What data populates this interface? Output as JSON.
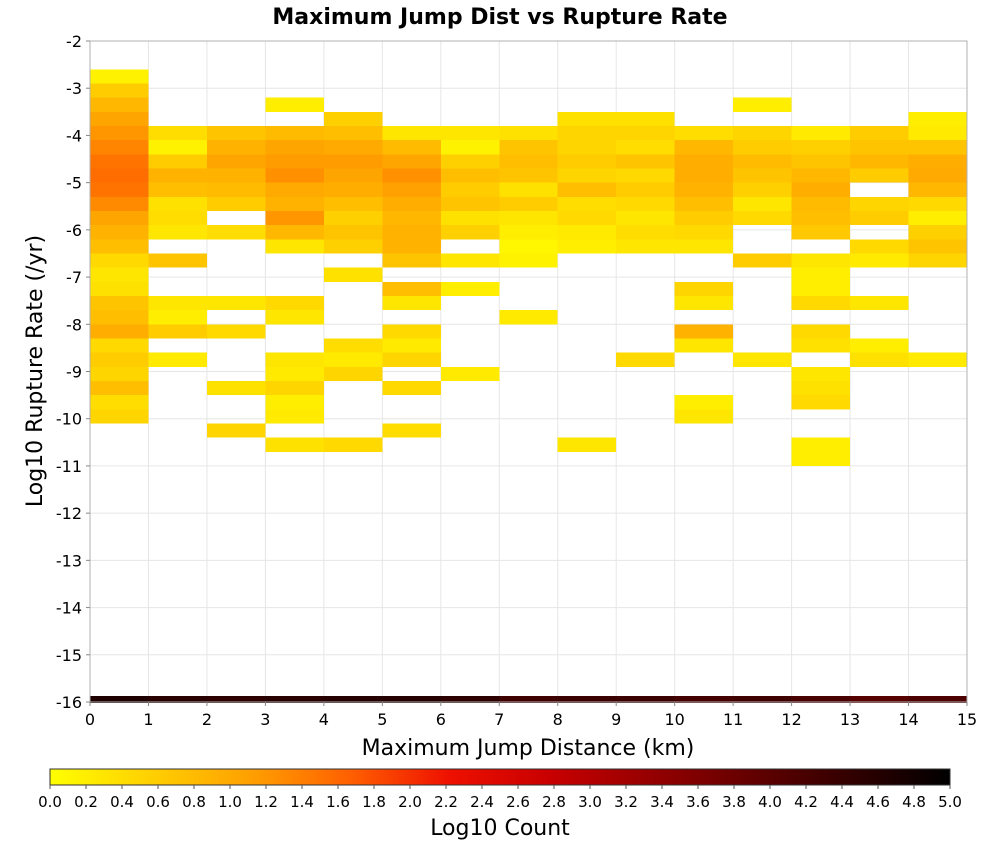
{
  "chart_data": {
    "type": "heatmap",
    "title": "Maximum Jump Dist vs Rupture Rate",
    "xlabel": "Maximum Jump Distance (km)",
    "ylabel": "Log10 Rupture Rate (/yr)",
    "xlim": [
      0,
      15
    ],
    "ylim": [
      -16,
      -2
    ],
    "x_bin_width": 1,
    "y_bin_width": 0.3,
    "x_ticks": [
      "0",
      "1",
      "2",
      "3",
      "4",
      "5",
      "6",
      "7",
      "8",
      "9",
      "10",
      "11",
      "12",
      "13",
      "14",
      "15"
    ],
    "y_ticks": [
      "-2",
      "-3",
      "-4",
      "-5",
      "-6",
      "-7",
      "-8",
      "-9",
      "-10",
      "-11",
      "-12",
      "-13",
      "-14",
      "-15",
      "-16"
    ],
    "grid": true,
    "colorbar": {
      "label": "Log10 Count",
      "range": [
        0.0,
        5.0
      ],
      "ticks": [
        "0.0",
        "0.2",
        "0.4",
        "0.6",
        "0.8",
        "1.0",
        "1.2",
        "1.4",
        "1.6",
        "1.8",
        "2.0",
        "2.2",
        "2.4",
        "2.6",
        "2.8",
        "3.0",
        "3.2",
        "3.4",
        "3.6",
        "3.8",
        "4.0",
        "4.2",
        "4.4",
        "4.6",
        "4.8",
        "5.0"
      ],
      "colors": [
        "#ffff00",
        "#ffd000",
        "#ffa000",
        "#ff6000",
        "#ee1000",
        "#c80000",
        "#960000",
        "#640000",
        "#320000",
        "#000000"
      ]
    },
    "bottom_row": {
      "y_center": -15.95,
      "values": [
        4.65,
        4.55,
        4.5,
        4.55,
        4.6,
        4.6,
        4.5,
        4.3,
        4.35,
        4.35,
        4.25,
        4.3,
        4.2,
        4.05,
        4.15
      ]
    },
    "cells": [
      [
        0,
        -2.75,
        0.15
      ],
      [
        0,
        -3.05,
        0.6
      ],
      [
        0,
        -3.35,
        0.85
      ],
      [
        0,
        -3.65,
        1.05
      ],
      [
        0,
        -3.95,
        1.2
      ],
      [
        0,
        -4.25,
        1.35
      ],
      [
        0,
        -4.55,
        1.5
      ],
      [
        0,
        -4.85,
        1.55
      ],
      [
        0,
        -5.15,
        1.5
      ],
      [
        0,
        -5.45,
        1.3
      ],
      [
        0,
        -5.75,
        1.05
      ],
      [
        0,
        -6.05,
        0.9
      ],
      [
        0,
        -6.35,
        0.75
      ],
      [
        0,
        -6.65,
        0.45
      ],
      [
        0,
        -6.95,
        0.3
      ],
      [
        0,
        -7.25,
        0.35
      ],
      [
        0,
        -7.55,
        0.7
      ],
      [
        0,
        -7.85,
        0.75
      ],
      [
        0,
        -8.15,
        0.95
      ],
      [
        0,
        -8.45,
        0.45
      ],
      [
        0,
        -8.75,
        0.6
      ],
      [
        0,
        -9.05,
        0.5
      ],
      [
        0,
        -9.35,
        0.75
      ],
      [
        0,
        -9.65,
        0.4
      ],
      [
        0,
        -9.95,
        0.5
      ],
      [
        1,
        -3.95,
        0.4
      ],
      [
        1,
        -4.25,
        0.15
      ],
      [
        1,
        -4.55,
        0.6
      ],
      [
        1,
        -4.85,
        0.9
      ],
      [
        1,
        -5.15,
        0.75
      ],
      [
        1,
        -5.45,
        0.35
      ],
      [
        1,
        -5.75,
        0.4
      ],
      [
        1,
        -6.05,
        0.3
      ],
      [
        1,
        -6.65,
        0.7
      ],
      [
        1,
        -7.55,
        0.3
      ],
      [
        1,
        -7.85,
        0.2
      ],
      [
        1,
        -8.15,
        0.6
      ],
      [
        1,
        -8.75,
        0.25
      ],
      [
        2,
        -3.95,
        0.7
      ],
      [
        2,
        -4.25,
        0.9
      ],
      [
        2,
        -4.55,
        1.05
      ],
      [
        2,
        -4.85,
        0.9
      ],
      [
        2,
        -5.15,
        0.8
      ],
      [
        2,
        -5.45,
        0.6
      ],
      [
        2,
        -6.05,
        0.4
      ],
      [
        2,
        -7.55,
        0.3
      ],
      [
        2,
        -8.15,
        0.45
      ],
      [
        2,
        -9.35,
        0.35
      ],
      [
        2,
        -10.25,
        0.5
      ],
      [
        3,
        -3.35,
        0.2
      ],
      [
        3,
        -3.95,
        0.8
      ],
      [
        3,
        -4.25,
        1.05
      ],
      [
        3,
        -4.55,
        1.15
      ],
      [
        3,
        -4.85,
        1.25
      ],
      [
        3,
        -5.15,
        1.0
      ],
      [
        3,
        -5.45,
        0.9
      ],
      [
        3,
        -5.75,
        1.2
      ],
      [
        3,
        -6.05,
        0.85
      ],
      [
        3,
        -6.35,
        0.3
      ],
      [
        3,
        -7.55,
        0.45
      ],
      [
        3,
        -7.85,
        0.3
      ],
      [
        3,
        -8.75,
        0.3
      ],
      [
        3,
        -9.05,
        0.25
      ],
      [
        3,
        -9.35,
        0.5
      ],
      [
        3,
        -9.65,
        0.2
      ],
      [
        3,
        -9.95,
        0.25
      ],
      [
        3,
        -10.55,
        0.35
      ],
      [
        4,
        -3.65,
        0.55
      ],
      [
        4,
        -3.95,
        0.75
      ],
      [
        4,
        -4.25,
        1.0
      ],
      [
        4,
        -4.55,
        1.15
      ],
      [
        4,
        -4.85,
        1.05
      ],
      [
        4,
        -5.15,
        0.95
      ],
      [
        4,
        -5.45,
        0.75
      ],
      [
        4,
        -5.75,
        0.55
      ],
      [
        4,
        -6.05,
        0.7
      ],
      [
        4,
        -6.35,
        0.55
      ],
      [
        4,
        -6.95,
        0.35
      ],
      [
        4,
        -8.45,
        0.4
      ],
      [
        4,
        -8.75,
        0.25
      ],
      [
        4,
        -9.05,
        0.5
      ],
      [
        4,
        -10.55,
        0.45
      ],
      [
        5,
        -3.95,
        0.3
      ],
      [
        5,
        -4.25,
        0.8
      ],
      [
        5,
        -4.55,
        1.05
      ],
      [
        5,
        -4.85,
        1.25
      ],
      [
        5,
        -5.15,
        1.1
      ],
      [
        5,
        -5.45,
        0.95
      ],
      [
        5,
        -5.75,
        0.85
      ],
      [
        5,
        -6.05,
        0.9
      ],
      [
        5,
        -6.35,
        0.9
      ],
      [
        5,
        -6.65,
        0.7
      ],
      [
        5,
        -7.25,
        0.75
      ],
      [
        5,
        -7.55,
        0.3
      ],
      [
        5,
        -8.15,
        0.45
      ],
      [
        5,
        -8.45,
        0.25
      ],
      [
        5,
        -8.75,
        0.5
      ],
      [
        5,
        -9.35,
        0.45
      ],
      [
        5,
        -10.25,
        0.4
      ],
      [
        6,
        -3.95,
        0.3
      ],
      [
        6,
        -4.25,
        0.15
      ],
      [
        6,
        -4.55,
        0.55
      ],
      [
        6,
        -4.85,
        0.75
      ],
      [
        6,
        -5.15,
        0.6
      ],
      [
        6,
        -5.45,
        0.7
      ],
      [
        6,
        -5.75,
        0.35
      ],
      [
        6,
        -6.05,
        0.55
      ],
      [
        6,
        -6.65,
        0.3
      ],
      [
        6,
        -7.25,
        0.2
      ],
      [
        6,
        -9.05,
        0.25
      ],
      [
        7,
        -3.95,
        0.35
      ],
      [
        7,
        -4.25,
        0.7
      ],
      [
        7,
        -4.55,
        0.75
      ],
      [
        7,
        -4.85,
        0.7
      ],
      [
        7,
        -5.15,
        0.35
      ],
      [
        7,
        -5.45,
        0.6
      ],
      [
        7,
        -5.75,
        0.3
      ],
      [
        7,
        -6.05,
        0.2
      ],
      [
        7,
        -6.35,
        0.1
      ],
      [
        7,
        -6.65,
        0.15
      ],
      [
        7,
        -7.85,
        0.25
      ],
      [
        8,
        -3.65,
        0.35
      ],
      [
        8,
        -3.95,
        0.5
      ],
      [
        8,
        -4.25,
        0.5
      ],
      [
        8,
        -4.55,
        0.6
      ],
      [
        8,
        -4.85,
        0.5
      ],
      [
        8,
        -5.15,
        0.75
      ],
      [
        8,
        -5.45,
        0.4
      ],
      [
        8,
        -5.75,
        0.45
      ],
      [
        8,
        -6.05,
        0.25
      ],
      [
        8,
        -6.35,
        0.2
      ],
      [
        8,
        -10.55,
        0.3
      ],
      [
        9,
        -3.65,
        0.35
      ],
      [
        9,
        -3.95,
        0.5
      ],
      [
        9,
        -4.25,
        0.4
      ],
      [
        9,
        -4.55,
        0.7
      ],
      [
        9,
        -4.85,
        0.45
      ],
      [
        9,
        -5.15,
        0.6
      ],
      [
        9,
        -5.45,
        0.45
      ],
      [
        9,
        -5.75,
        0.3
      ],
      [
        9,
        -6.05,
        0.4
      ],
      [
        9,
        -6.35,
        0.3
      ],
      [
        9,
        -8.75,
        0.45
      ],
      [
        10,
        -3.95,
        0.4
      ],
      [
        10,
        -4.25,
        0.85
      ],
      [
        10,
        -4.55,
        0.95
      ],
      [
        10,
        -4.85,
        0.95
      ],
      [
        10,
        -5.15,
        0.9
      ],
      [
        10,
        -5.45,
        0.75
      ],
      [
        10,
        -5.75,
        0.6
      ],
      [
        10,
        -6.05,
        0.45
      ],
      [
        10,
        -6.35,
        0.3
      ],
      [
        10,
        -7.25,
        0.5
      ],
      [
        10,
        -7.55,
        0.3
      ],
      [
        10,
        -8.15,
        0.9
      ],
      [
        10,
        -8.45,
        0.3
      ],
      [
        10,
        -9.65,
        0.2
      ],
      [
        10,
        -9.95,
        0.3
      ],
      [
        11,
        -3.35,
        0.2
      ],
      [
        11,
        -3.95,
        0.5
      ],
      [
        11,
        -4.25,
        0.6
      ],
      [
        11,
        -4.55,
        0.8
      ],
      [
        11,
        -4.85,
        0.7
      ],
      [
        11,
        -5.15,
        0.55
      ],
      [
        11,
        -5.45,
        0.3
      ],
      [
        11,
        -5.75,
        0.45
      ],
      [
        11,
        -6.65,
        0.6
      ],
      [
        11,
        -8.75,
        0.3
      ],
      [
        12,
        -3.95,
        0.25
      ],
      [
        12,
        -4.25,
        0.55
      ],
      [
        12,
        -4.55,
        0.7
      ],
      [
        12,
        -4.85,
        0.85
      ],
      [
        12,
        -5.15,
        0.95
      ],
      [
        12,
        -5.45,
        0.8
      ],
      [
        12,
        -5.75,
        0.75
      ],
      [
        12,
        -6.05,
        0.65
      ],
      [
        12,
        -6.65,
        0.3
      ],
      [
        12,
        -6.95,
        0.2
      ],
      [
        12,
        -7.25,
        0.2
      ],
      [
        12,
        -7.55,
        0.45
      ],
      [
        12,
        -8.15,
        0.45
      ],
      [
        12,
        -8.45,
        0.35
      ],
      [
        12,
        -9.05,
        0.3
      ],
      [
        12,
        -9.35,
        0.35
      ],
      [
        12,
        -9.65,
        0.45
      ],
      [
        12,
        -10.55,
        0.2
      ],
      [
        12,
        -10.85,
        0.2
      ],
      [
        13,
        -3.95,
        0.6
      ],
      [
        13,
        -4.25,
        0.7
      ],
      [
        13,
        -4.55,
        0.85
      ],
      [
        13,
        -4.85,
        0.6
      ],
      [
        13,
        -5.45,
        0.5
      ],
      [
        13,
        -5.75,
        0.6
      ],
      [
        13,
        -6.35,
        0.45
      ],
      [
        13,
        -6.65,
        0.25
      ],
      [
        13,
        -7.55,
        0.3
      ],
      [
        13,
        -8.45,
        0.2
      ],
      [
        13,
        -8.75,
        0.35
      ],
      [
        14,
        -3.65,
        0.2
      ],
      [
        14,
        -3.95,
        0.25
      ],
      [
        14,
        -4.25,
        0.7
      ],
      [
        14,
        -4.55,
        0.95
      ],
      [
        14,
        -4.85,
        1.0
      ],
      [
        14,
        -5.15,
        0.85
      ],
      [
        14,
        -5.45,
        0.45
      ],
      [
        14,
        -5.75,
        0.2
      ],
      [
        14,
        -6.05,
        0.55
      ],
      [
        14,
        -6.35,
        0.7
      ],
      [
        14,
        -6.65,
        0.5
      ],
      [
        14,
        -8.75,
        0.25
      ]
    ]
  }
}
